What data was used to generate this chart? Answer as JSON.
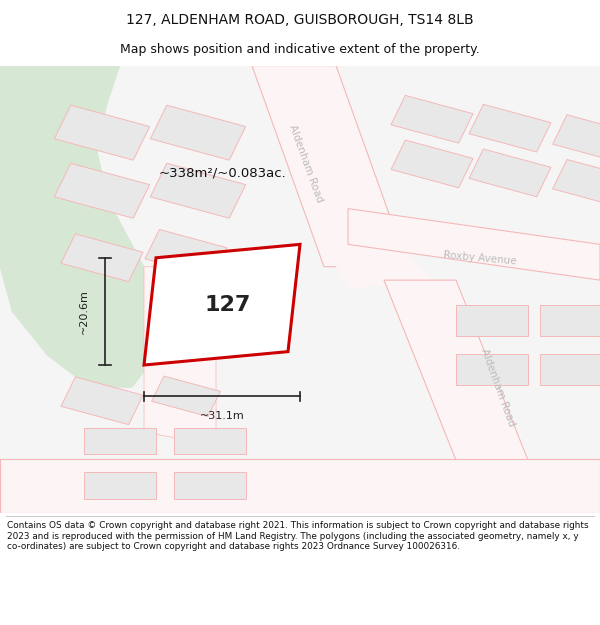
{
  "title": "127, ALDENHAM ROAD, GUISBOROUGH, TS14 8LB",
  "subtitle": "Map shows position and indicative extent of the property.",
  "footer": "Contains OS data © Crown copyright and database right 2021. This information is subject to Crown copyright and database rights 2023 and is reproduced with the permission of HM Land Registry. The polygons (including the associated geometry, namely x, y co-ordinates) are subject to Crown copyright and database rights 2023 Ordnance Survey 100026316.",
  "bg_color": "#ffffff",
  "plot_stroke": "#cc0000",
  "plot_fill": "#ffffff",
  "green_fill": "#d6e8d4",
  "block_fill": "#e8e8e8",
  "block_ec": "#f5b8b8",
  "road_fill": "#ffffff",
  "road_ec": "#f5b8b8",
  "road_label_color": "#bbbbbb",
  "label_127": "127",
  "area_label": "~338m²/~0.083ac.",
  "dim_width": "~31.1m",
  "dim_height": "~20.6m",
  "road_label_1": "Aldenham Road",
  "road_label_2": "Roxby Avenue",
  "road_label_3": "Aldenham Road",
  "title_fontsize": 10,
  "subtitle_fontsize": 9
}
